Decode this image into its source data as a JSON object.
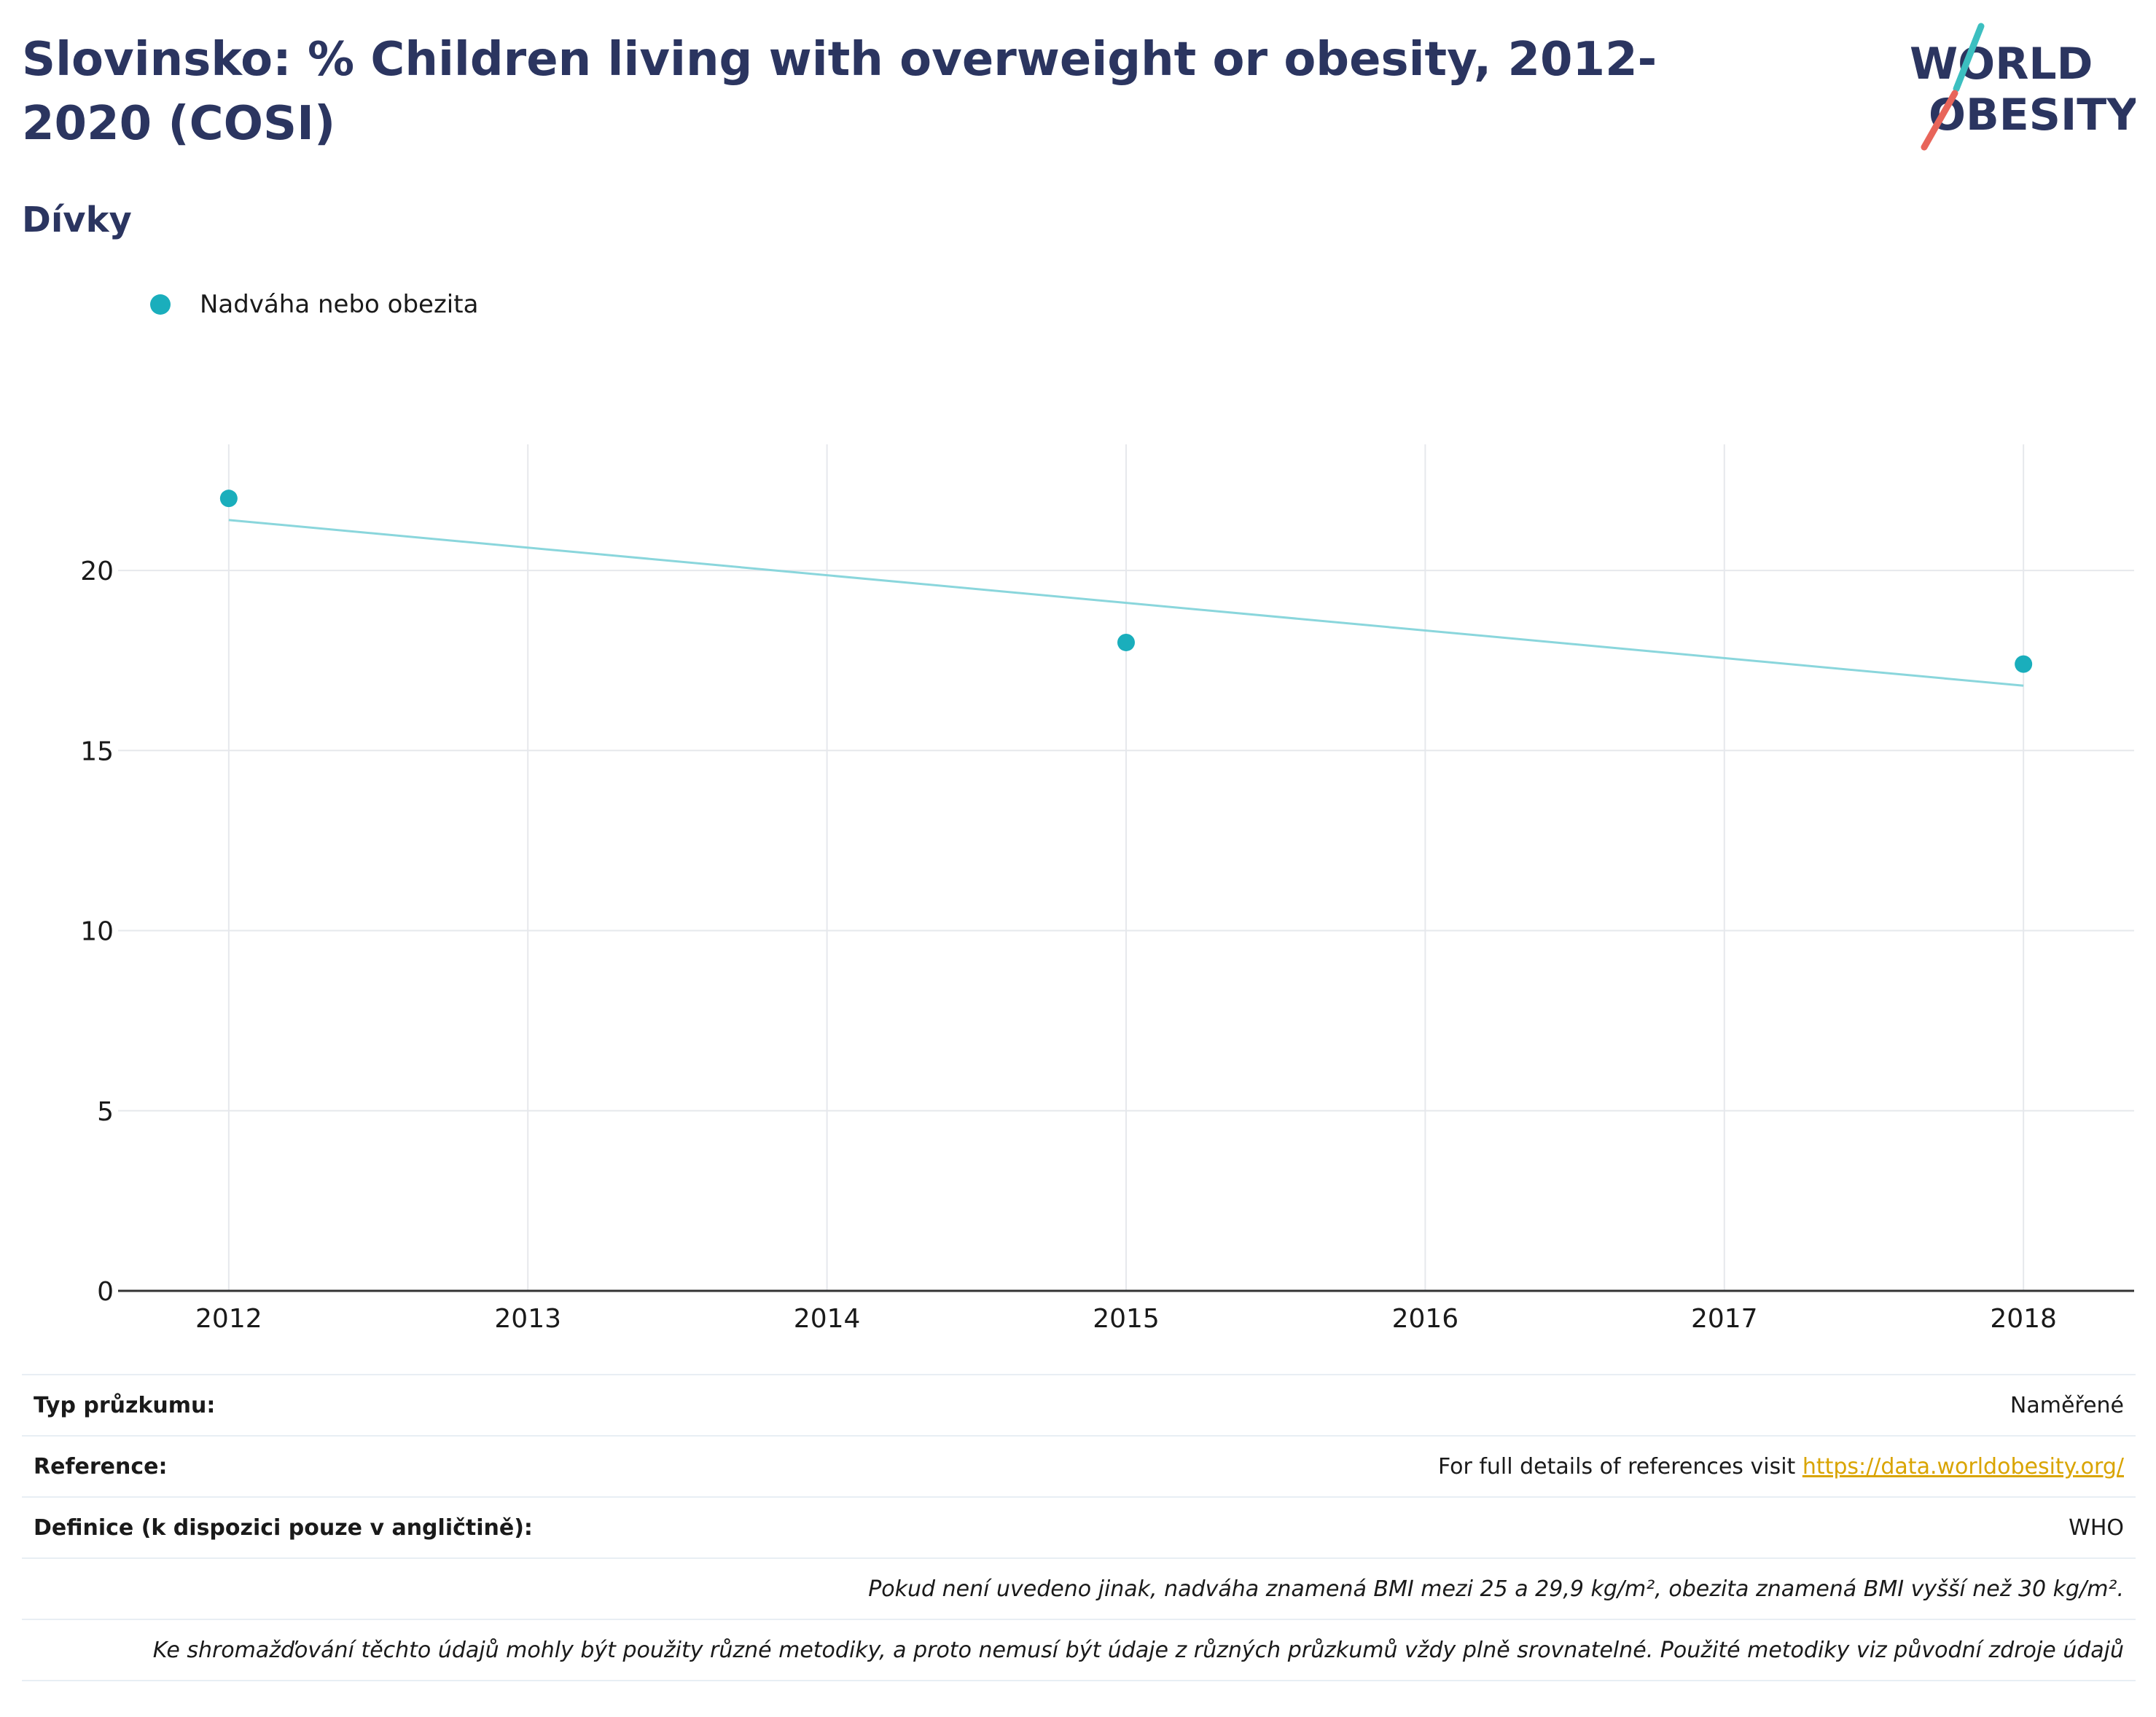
{
  "title": "Slovinsko: % Children living with overweight or obesity, 2012-2020 (COSI)",
  "subtitle": "Dívky",
  "logo": {
    "line1": "WORLD",
    "line2": "OBESITY"
  },
  "colors": {
    "series": "#1aaebc",
    "trend": "#8ad6dc",
    "title": "#2b3560",
    "grid": "#e6e8ec",
    "logo_teal": "#3cbfc0",
    "logo_red": "#e8655a",
    "link": "#d9a400"
  },
  "chart_data": {
    "type": "scatter",
    "title": "",
    "xlabel": "",
    "ylabel": "",
    "legend": "top-left",
    "grid": true,
    "xlim": [
      2011.63,
      2018.37
    ],
    "ylim": [
      0,
      23.5
    ],
    "x_ticks": [
      2012,
      2013,
      2014,
      2015,
      2016,
      2017,
      2018
    ],
    "y_ticks": [
      0,
      5,
      10,
      15,
      20
    ],
    "series": [
      {
        "name": "Nadváha nebo obezita",
        "x": [
          2012,
          2015,
          2018
        ],
        "y": [
          22.0,
          18.0,
          17.4
        ]
      }
    ],
    "trendline": {
      "x": [
        2012,
        2018
      ],
      "y": [
        21.4,
        16.8
      ]
    }
  },
  "info": {
    "survey_type_label": "Typ průzkumu:",
    "survey_type_value": "Naměřené",
    "reference_label": "Reference:",
    "reference_text": "For full details of references visit ",
    "reference_link": "https://data.worldobesity.org/",
    "definition_label": "Definice (k dispozici pouze v angličtině):",
    "definition_value": "WHO",
    "note1": "Pokud není uvedeno jinak, nadváha znamená BMI mezi 25 a 29,9 kg/m², obezita znamená BMI vyšší než 30 kg/m².",
    "note2": "Ke shromažďování těchto údajů mohly být použity různé metodiky, a proto nemusí být údaje z různých průzkumů vždy plně srovnatelné. Použité metodiky viz původní zdroje údajů"
  }
}
